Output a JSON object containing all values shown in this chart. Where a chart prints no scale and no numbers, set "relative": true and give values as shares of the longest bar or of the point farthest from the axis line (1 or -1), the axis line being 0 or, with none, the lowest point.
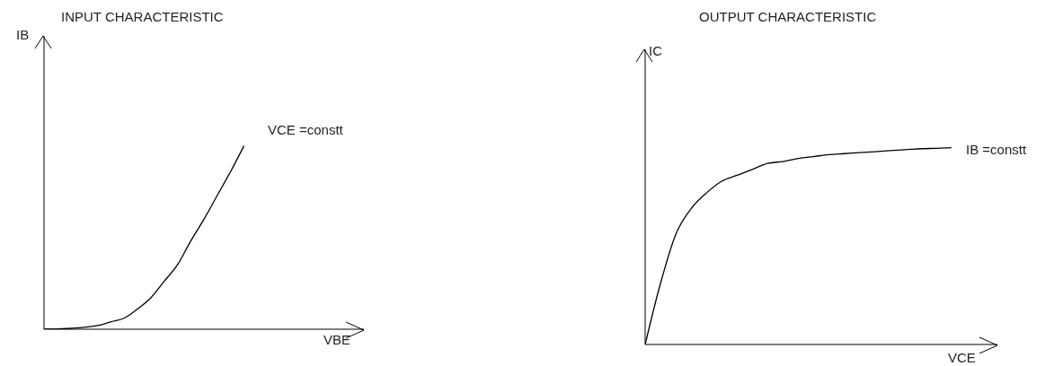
{
  "chart_data": [
    {
      "type": "line",
      "title": "INPUT CHARACTERISTIC",
      "xlabel": "VBE",
      "ylabel": "IB",
      "relative": true,
      "annotations": [
        "VCE =constt"
      ],
      "categories": [
        null,
        null,
        null,
        null,
        null,
        null,
        null,
        null,
        null,
        null,
        null,
        null,
        null,
        null,
        null,
        null,
        null,
        null,
        null,
        null,
        null,
        null,
        null,
        null,
        null
      ],
      "series": [
        {
          "color": "#000000",
          "values": [
            0,
            0.002,
            0.005,
            0.01,
            0.02,
            0.04,
            0.06,
            0.11,
            0.17,
            0.26,
            0.35,
            0.48,
            0.6,
            0.73,
            0.86,
            1,
            null,
            null,
            null,
            null,
            null,
            null,
            null,
            null,
            null
          ]
        }
      ]
    },
    {
      "type": "line",
      "title": "OUTPUT CHARACTERISTIC",
      "xlabel": "VCE",
      "ylabel": "IC",
      "relative": true,
      "annotations": [
        "IB =constt"
      ],
      "categories": [
        null,
        null,
        null,
        null,
        null,
        null,
        null,
        null,
        null,
        null,
        null,
        null,
        null,
        null,
        null,
        null,
        null,
        null,
        null,
        null,
        null,
        null,
        null,
        null
      ],
      "series": [
        {
          "color": "#000000",
          "values": [
            0,
            0.31,
            0.56,
            0.69,
            0.77,
            0.83,
            0.86,
            0.89,
            0.92,
            0.93,
            0.945,
            0.955,
            0.965,
            0.97,
            0.975,
            0.98,
            0.985,
            0.99,
            0.995,
            0.997,
            1,
            null,
            null,
            null
          ]
        }
      ]
    }
  ]
}
